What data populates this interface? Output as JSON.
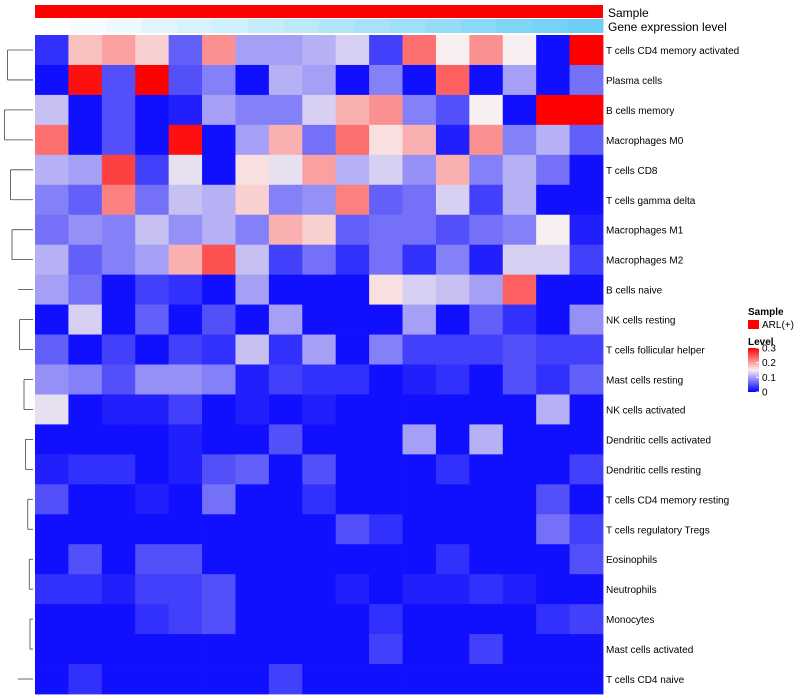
{
  "chart_data": {
    "type": "heatmap",
    "title": "",
    "annotation_labels": [
      "Sample",
      "Gene expression level"
    ],
    "sample_annotation_color": "#ff0000",
    "expression_annotation_values": [
      0.0,
      0.06,
      0.12,
      0.18,
      0.24,
      0.3,
      0.36,
      0.42,
      0.48,
      0.54,
      0.6,
      0.66,
      0.72,
      0.78,
      0.84,
      0.9
    ],
    "expression_annotation_colors": [
      "#ffffff",
      "#6dcff6"
    ],
    "rows": [
      "T cells CD4 memory activated",
      "Plasma cells",
      "B cells memory",
      "Macrophages M0",
      "T cells CD8",
      "T cells gamma delta",
      "Macrophages M1",
      "Macrophages M2",
      "B cells naive",
      "NK cells resting",
      "T cells follicular helper",
      "Mast cells resting",
      "NK cells activated",
      "Dendritic cells activated",
      "Dendritic cells resting",
      "T cells CD4 memory resting",
      "T cells regulatory  Tregs",
      "Eosinophils",
      "Neutrophils",
      "Monocytes",
      "Mast cells activated",
      "T cells CD4 naive"
    ],
    "values": [
      [
        0.03,
        0.18,
        0.2,
        0.17,
        0.06,
        0.21,
        0.1,
        0.1,
        0.11,
        0.13,
        0.04,
        0.23,
        0.15,
        0.21,
        0.15,
        0.01,
        0.3
      ],
      [
        0.01,
        0.29,
        0.05,
        0.3,
        0.05,
        0.08,
        0.01,
        0.11,
        0.1,
        0.01,
        0.08,
        0.01,
        0.24,
        0.01,
        0.1,
        0.01,
        0.07
      ],
      [
        0.12,
        0.01,
        0.05,
        0.01,
        0.02,
        0.1,
        0.08,
        0.08,
        0.13,
        0.19,
        0.21,
        0.08,
        0.05,
        0.15,
        0.01,
        0.3,
        0.3
      ],
      [
        0.23,
        0.01,
        0.05,
        0.01,
        0.29,
        0.01,
        0.1,
        0.19,
        0.07,
        0.23,
        0.16,
        0.19,
        0.02,
        0.21,
        0.08,
        0.11,
        0.06
      ],
      [
        0.11,
        0.1,
        0.26,
        0.04,
        0.14,
        0.01,
        0.16,
        0.14,
        0.2,
        0.11,
        0.13,
        0.09,
        0.19,
        0.08,
        0.11,
        0.07,
        0.01
      ],
      [
        0.08,
        0.06,
        0.22,
        0.07,
        0.12,
        0.11,
        0.17,
        0.08,
        0.09,
        0.22,
        0.06,
        0.07,
        0.13,
        0.04,
        0.11,
        0.01,
        0.01
      ],
      [
        0.07,
        0.09,
        0.08,
        0.12,
        0.09,
        0.11,
        0.08,
        0.19,
        0.17,
        0.06,
        0.07,
        0.07,
        0.05,
        0.07,
        0.08,
        0.15,
        0.02
      ],
      [
        0.11,
        0.06,
        0.08,
        0.1,
        0.19,
        0.25,
        0.12,
        0.04,
        0.07,
        0.03,
        0.07,
        0.03,
        0.08,
        0.02,
        0.13,
        0.13,
        0.04
      ],
      [
        0.1,
        0.07,
        0.01,
        0.04,
        0.03,
        0.01,
        0.1,
        0.01,
        0.01,
        0.01,
        0.16,
        0.13,
        0.12,
        0.1,
        0.24,
        0.01,
        0.01
      ],
      [
        0.01,
        0.13,
        0.01,
        0.06,
        0.01,
        0.05,
        0.01,
        0.1,
        0.01,
        0.01,
        0.01,
        0.1,
        0.01,
        0.06,
        0.03,
        0.01,
        0.09
      ],
      [
        0.06,
        0.01,
        0.04,
        0.01,
        0.04,
        0.03,
        0.12,
        0.03,
        0.1,
        0.01,
        0.08,
        0.04,
        0.04,
        0.04,
        0.05,
        0.04,
        0.04
      ],
      [
        0.09,
        0.08,
        0.05,
        0.09,
        0.09,
        0.08,
        0.02,
        0.04,
        0.03,
        0.03,
        0.01,
        0.02,
        0.03,
        0.01,
        0.05,
        0.03,
        0.06
      ],
      [
        0.14,
        0.01,
        0.02,
        0.02,
        0.04,
        0.01,
        0.02,
        0.01,
        0.02,
        0.01,
        0.01,
        0.01,
        0.01,
        0.01,
        0.01,
        0.11,
        0.01
      ],
      [
        0.01,
        0.01,
        0.01,
        0.01,
        0.02,
        0.01,
        0.01,
        0.05,
        0.01,
        0.01,
        0.01,
        0.1,
        0.01,
        0.11,
        0.01,
        0.01,
        0.01
      ],
      [
        0.02,
        0.03,
        0.03,
        0.01,
        0.02,
        0.05,
        0.06,
        0.01,
        0.05,
        0.01,
        0.01,
        0.01,
        0.03,
        0.01,
        0.01,
        0.01,
        0.04
      ],
      [
        0.05,
        0.01,
        0.01,
        0.02,
        0.01,
        0.07,
        0.01,
        0.01,
        0.03,
        0.01,
        0.01,
        0.01,
        0.01,
        0.01,
        0.01,
        0.05,
        0.01
      ],
      [
        0.01,
        0.01,
        0.01,
        0.01,
        0.01,
        0.01,
        0.01,
        0.01,
        0.01,
        0.05,
        0.03,
        0.01,
        0.01,
        0.01,
        0.01,
        0.07,
        0.04
      ],
      [
        0.01,
        0.05,
        0.01,
        0.05,
        0.05,
        0.01,
        0.01,
        0.01,
        0.01,
        0.01,
        0.01,
        0.01,
        0.03,
        0.01,
        0.01,
        0.01,
        0.05
      ],
      [
        0.03,
        0.03,
        0.02,
        0.04,
        0.04,
        0.05,
        0.01,
        0.01,
        0.01,
        0.02,
        0.01,
        0.02,
        0.02,
        0.03,
        0.02,
        0.01,
        0.01
      ],
      [
        0.01,
        0.01,
        0.01,
        0.03,
        0.04,
        0.05,
        0.01,
        0.01,
        0.01,
        0.01,
        0.03,
        0.01,
        0.01,
        0.01,
        0.01,
        0.03,
        0.04
      ],
      [
        0.01,
        0.01,
        0.01,
        0.01,
        0.01,
        0.01,
        0.01,
        0.01,
        0.01,
        0.01,
        0.04,
        0.01,
        0.01,
        0.04,
        0.01,
        0.01,
        0.01
      ],
      [
        0.01,
        0.03,
        0.01,
        0.01,
        0.01,
        0.01,
        0.01,
        0.04,
        0.01,
        0.01,
        0.01,
        0.01,
        0.01,
        0.01,
        0.01,
        0.01,
        0.01
      ]
    ],
    "color_scale": {
      "min": 0,
      "max": 0.3,
      "stops": [
        {
          "value": 0,
          "color": "#0000ff"
        },
        {
          "value": 0.15,
          "color": "#f8f0f0"
        },
        {
          "value": 0.3,
          "color": "#ff0000"
        }
      ]
    },
    "legend": {
      "position": "right",
      "sample_title": "Sample",
      "sample_entry": "ARL(+)",
      "level_title": "Level",
      "ticks": [
        "0.3",
        "0.2",
        "0.1",
        "0"
      ],
      "tick_values": [
        0.3,
        0.2,
        0.1,
        0
      ]
    },
    "dendrogram": {
      "merges": [
        [
          0,
          1,
          0.34
        ],
        [
          2,
          3,
          0.38
        ],
        [
          4,
          5,
          0.3
        ],
        [
          6,
          7,
          0.28
        ],
        [
          9,
          10,
          0.18
        ],
        [
          11,
          12,
          0.12
        ],
        [
          13,
          14,
          0.1
        ],
        [
          15,
          16,
          0.07
        ],
        [
          17,
          18,
          0.05
        ],
        [
          19,
          20,
          0.04
        ]
      ]
    }
  }
}
